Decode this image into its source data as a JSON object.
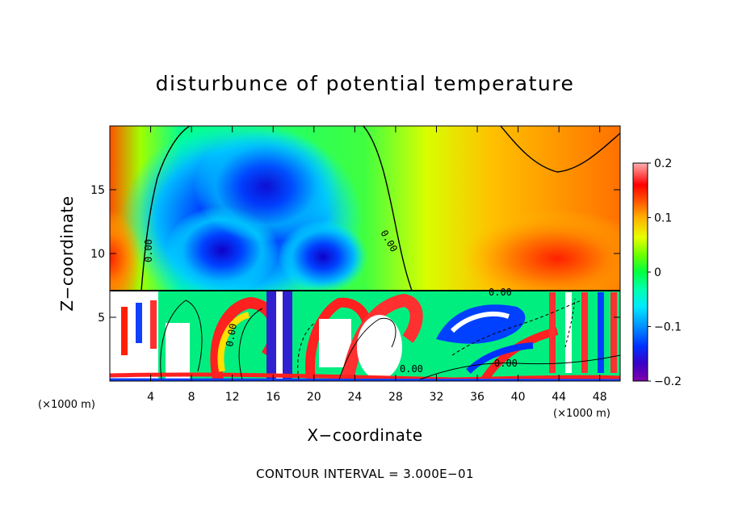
{
  "chart_data": {
    "type": "heatmap",
    "title": "disturbunce of potential temperature",
    "xlabel": "X−coordinate",
    "ylabel": "Z−coordinate",
    "xlim": [
      0,
      50
    ],
    "ylim": [
      0,
      20
    ],
    "x_ticks": [
      4,
      8,
      12,
      16,
      20,
      24,
      28,
      32,
      36,
      40,
      44,
      48
    ],
    "x_tick_labels": [
      "4",
      "8",
      "12",
      "16",
      "20",
      "24",
      "28",
      "32",
      "36",
      "40",
      "44",
      "48"
    ],
    "y_ticks": [
      5,
      10,
      15
    ],
    "y_tick_labels": [
      "5",
      "10",
      "15"
    ],
    "x_unit_note_left": "(×1000 m)",
    "x_unit_note_right": "(×1000 m)",
    "colorbar": {
      "range": [
        -0.2,
        0.2
      ],
      "ticks": [
        0.2,
        0.1,
        0,
        -0.1,
        -0.2
      ],
      "tick_labels": [
        "0.2",
        "0.1",
        "0",
        "−0.1",
        "−0.2"
      ],
      "colors": [
        "#8000a8",
        "#4000c0",
        "#0000ff",
        "#0040ff",
        "#0080ff",
        "#00b0ff",
        "#00e0ff",
        "#00ffd0",
        "#00ff80",
        "#00ff20",
        "#60ff00",
        "#a0ff00",
        "#e0ff00",
        "#ffe000",
        "#ffb000",
        "#ff8000",
        "#ff4000",
        "#ff0000",
        "#ff6060",
        "#ffa0a0"
      ]
    },
    "contour_labels": [
      "0.00",
      "0.00",
      "0.00",
      "0.00",
      "0.00",
      "0.00"
    ],
    "contour_interval_text": "CONTOUR INTERVAL = 3.000E−01"
  }
}
